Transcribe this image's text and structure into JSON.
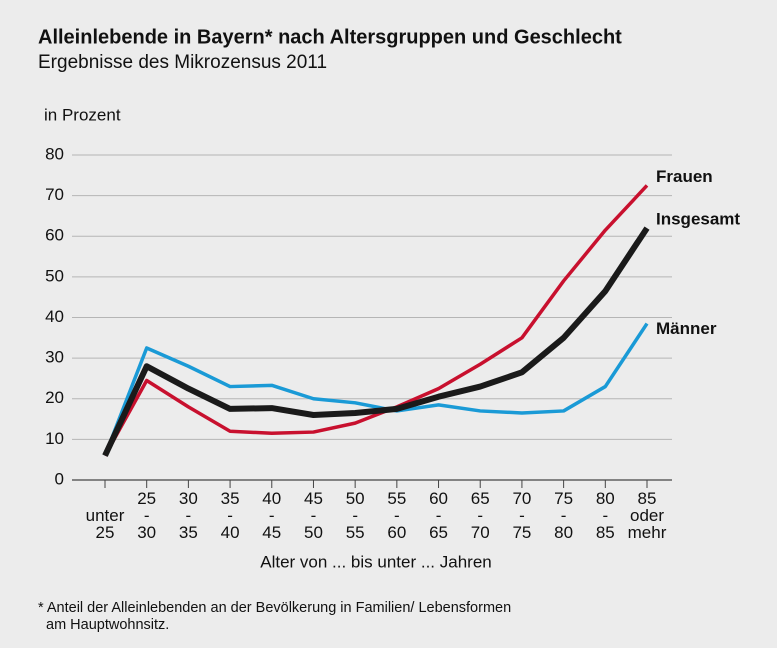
{
  "chart_data": {
    "type": "line",
    "title": "Alleinlebende in Bayern* nach Altersgruppen und Geschlecht",
    "subtitle": "Ergebnisse des Mikrozensus 2011",
    "y_axis_label": "in Prozent",
    "x_axis_label": "Alter von ... bis unter ... Jahren",
    "footnote": [
      "* Anteil der Alleinlebenden an der Bevölkerung in Familien/ Lebensformen",
      "am Hauptwohnsitz."
    ],
    "categories": [
      "unter 25",
      "25 - 30",
      "30 - 35",
      "35 - 40",
      "40 - 45",
      "45 - 50",
      "50 - 55",
      "55 - 60",
      "60 - 65",
      "65 - 70",
      "70 - 75",
      "75 - 80",
      "80 - 85",
      "85 oder mehr"
    ],
    "series": [
      {
        "name": "Frauen",
        "color": "#c8102e",
        "values": [
          6,
          24.5,
          18,
          12,
          11.5,
          11.8,
          14,
          18,
          22.5,
          28.5,
          35,
          49,
          61.5,
          72.5
        ]
      },
      {
        "name": "Insgesamt",
        "color": "#1a1a1a",
        "values": [
          6,
          28,
          22.5,
          17.5,
          17.7,
          16,
          16.5,
          17.5,
          20.5,
          23,
          26.5,
          35,
          46.5,
          62
        ]
      },
      {
        "name": "Männer",
        "color": "#1a9ad6",
        "values": [
          6,
          32.5,
          28,
          23,
          23.3,
          20,
          19,
          17,
          18.5,
          17,
          16.5,
          17,
          23,
          38.5
        ]
      }
    ],
    "ylim": [
      0,
      80
    ],
    "yticks": [
      0,
      10,
      20,
      30,
      40,
      50,
      60,
      70,
      80
    ],
    "grid": true
  }
}
